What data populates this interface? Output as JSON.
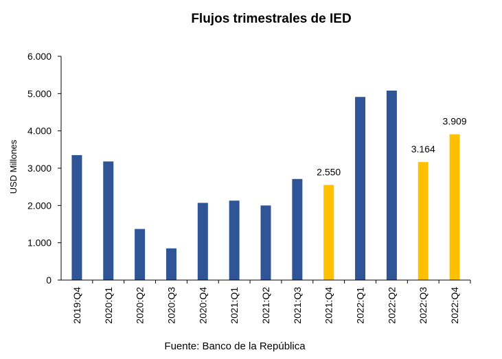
{
  "chart_data": {
    "type": "bar",
    "title": "Flujos trimestrales de IED",
    "ylabel": "USD Millones",
    "xlabel": "",
    "source": "Fuente: Banco de la República",
    "categories": [
      "2019:Q4",
      "2020:Q1",
      "2020:Q2",
      "2020:Q3",
      "2020:Q4",
      "2021:Q1",
      "2021:Q2",
      "2021:Q3",
      "2021:Q4",
      "2022:Q1",
      "2022:Q2",
      "2022:Q3",
      "2022:Q4"
    ],
    "values": [
      3350,
      3180,
      1370,
      850,
      2070,
      2130,
      2000,
      2710,
      2550,
      4910,
      5080,
      3164,
      3909
    ],
    "highlight": [
      false,
      false,
      false,
      false,
      false,
      false,
      false,
      false,
      true,
      false,
      false,
      true,
      true
    ],
    "data_labels": {
      "8": "2.550",
      "11": "3.164",
      "12": "3.909"
    },
    "ylim": [
      0,
      6000
    ],
    "yticks": [
      0,
      1000,
      2000,
      3000,
      4000,
      5000,
      6000
    ],
    "ytick_labels": [
      "0",
      "1.000",
      "2.000",
      "3.000",
      "4.000",
      "5.000",
      "6.000"
    ],
    "grid": false,
    "colors": {
      "base": "#2F5597",
      "highlight": "#FFC000"
    }
  }
}
